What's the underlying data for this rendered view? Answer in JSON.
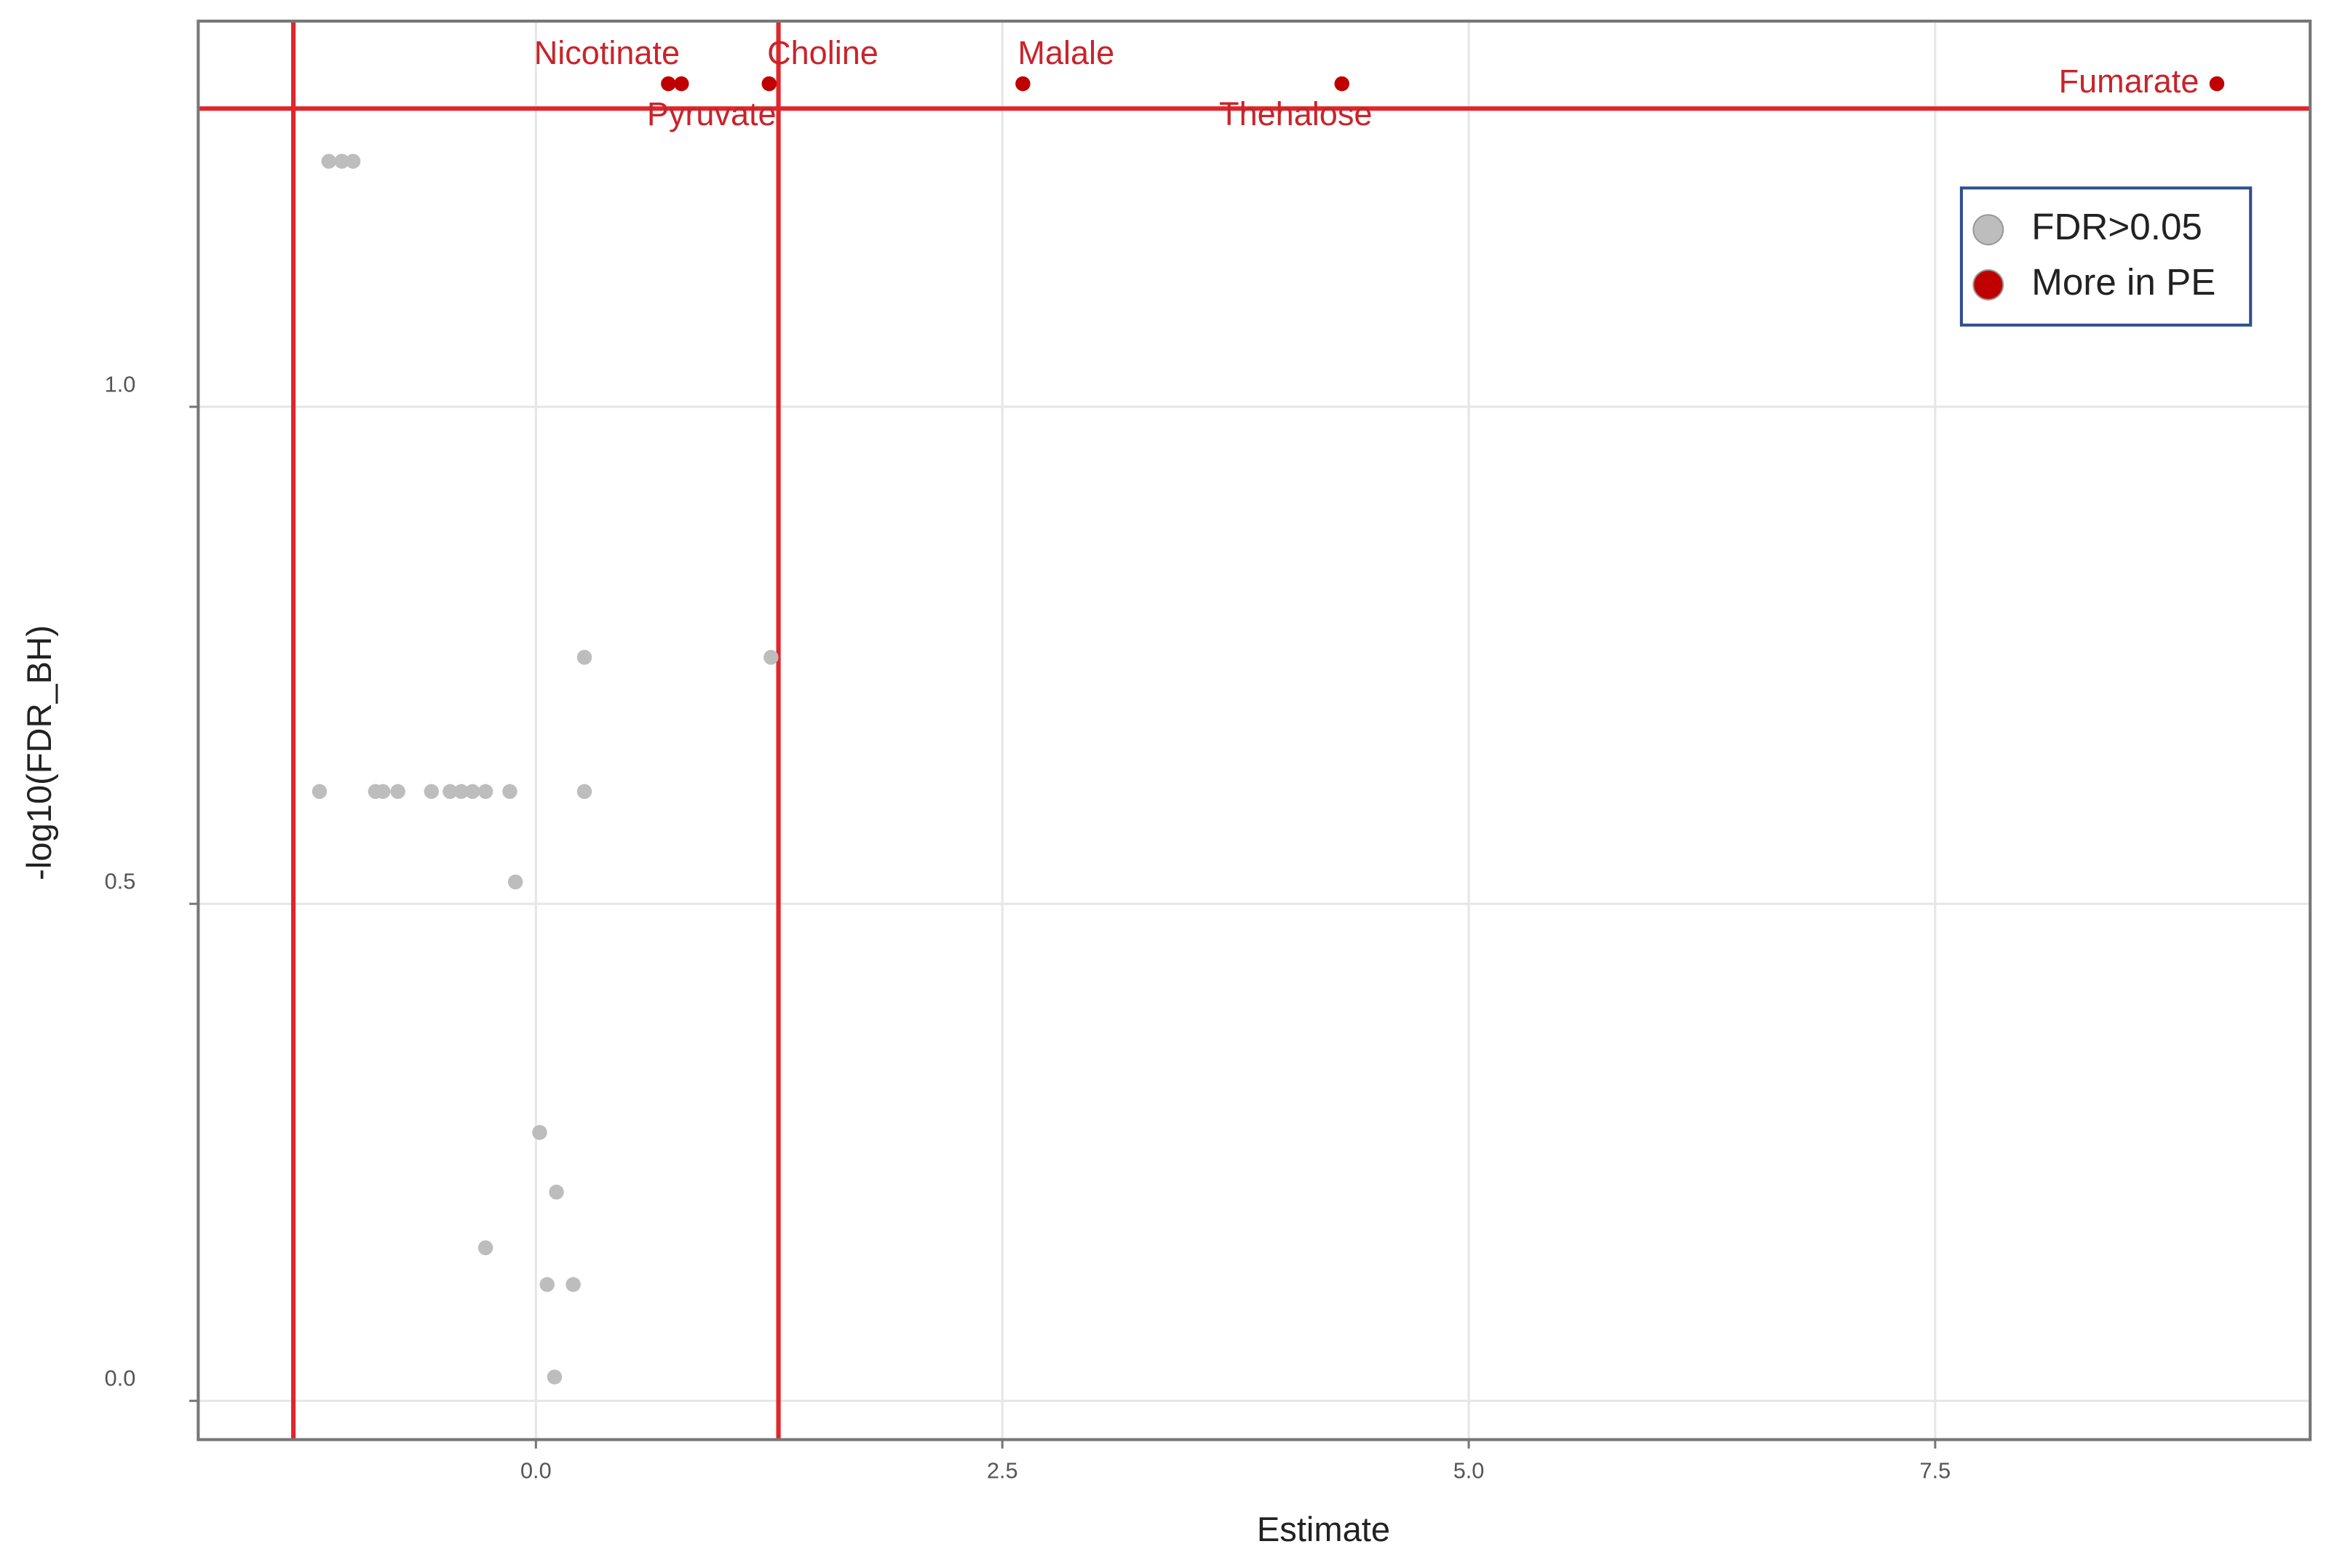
{
  "chart_data": {
    "type": "scatter",
    "x_label": "Estimate",
    "y_label": "-log10(FDR_BH)",
    "xlim": [
      -1.81,
      9.51
    ],
    "ylim": [
      -0.039,
      1.388
    ],
    "xticks": [
      {
        "value": 0,
        "label": "0.0"
      },
      2.5,
      {
        "value": 5,
        "label": "5.0"
      },
      7.5
    ],
    "yticks": [
      {
        "value": 0,
        "label": "0.0"
      },
      0.5,
      {
        "value": 1,
        "label": "1.0"
      }
    ],
    "grid": true,
    "legend_position": "upper right",
    "vlines": [
      -1.3,
      1.3
    ],
    "hline": 1.3,
    "line_color": "#e0262b",
    "series": [
      {
        "name": "FDR>0.05",
        "color": "#bdbdbd",
        "x": [
          -1.11,
          -1.04,
          -0.98,
          0.26,
          1.26,
          -1.16,
          -0.86,
          -0.82,
          -0.74,
          -0.56,
          -0.46,
          -0.4,
          -0.34,
          -0.27,
          -0.14,
          0.26,
          -0.11,
          0.02,
          0.11,
          -0.27,
          0.06,
          0.2,
          0.1
        ],
        "values": [
          1.247,
          1.247,
          1.247,
          0.748,
          0.748,
          0.613,
          0.613,
          0.613,
          0.613,
          0.613,
          0.613,
          0.613,
          0.613,
          0.613,
          0.613,
          0.613,
          0.522,
          0.27,
          0.21,
          0.154,
          0.117,
          0.117,
          0.024
        ]
      },
      {
        "name": "More in PE",
        "color": "#c00000",
        "x": [
          0.78,
          0.71,
          1.25,
          2.61,
          4.32,
          9.01
        ],
        "values": [
          1.325,
          1.325,
          1.325,
          1.325,
          1.325,
          1.325
        ],
        "labels": [
          "Nicotinate",
          "Pyruvate",
          "Choline",
          "Malale",
          "Thehalose",
          "Fumarate"
        ]
      }
    ]
  }
}
